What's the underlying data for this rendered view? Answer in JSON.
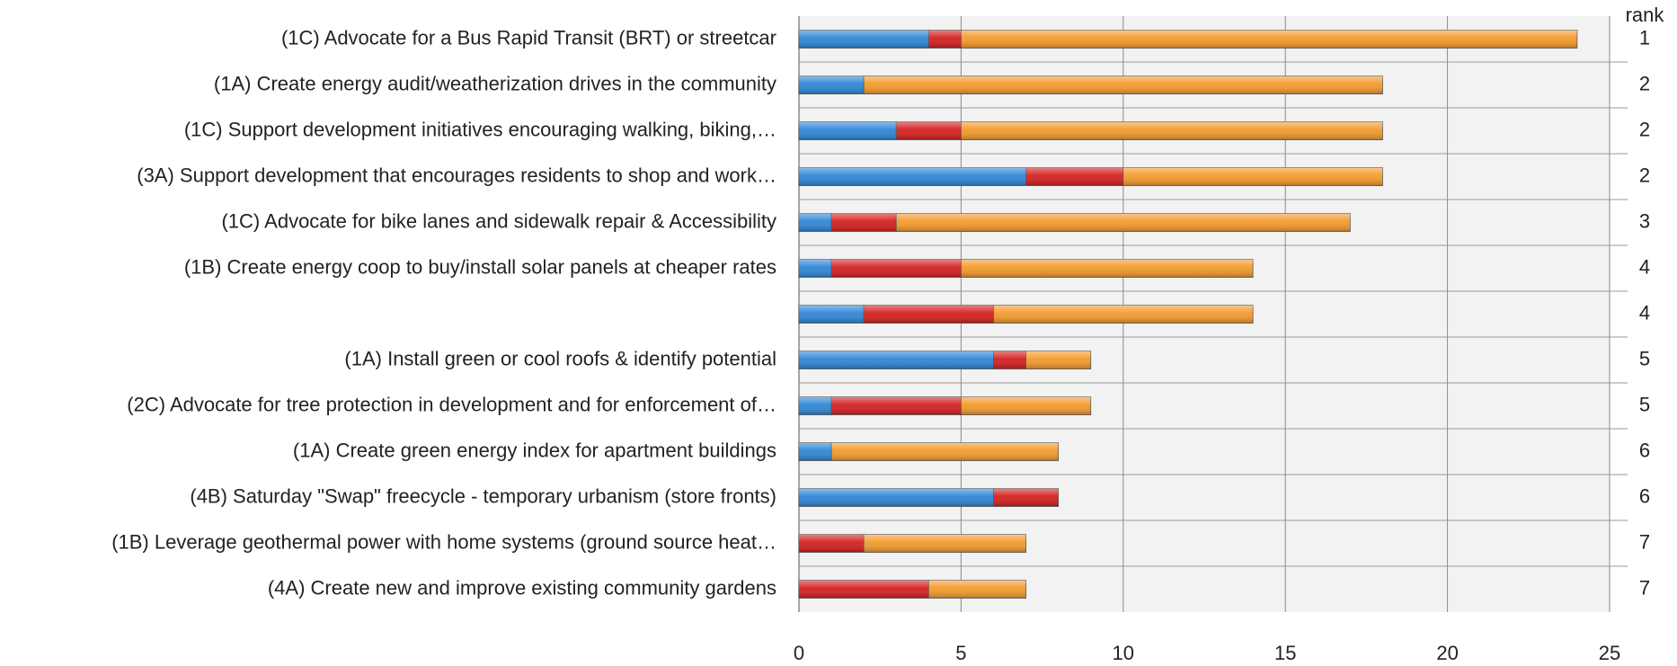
{
  "chart_data": {
    "type": "stacked_bar_horizontal",
    "categories": [
      "(1C) Advocate for a Bus Rapid Transit (BRT) or streetcar",
      "(1A) Create energy audit/weatherization drives in the community",
      "(1C) Support development initiatives encouraging walking, biking,…",
      "(3A) Support development that encourages residents to shop and work…",
      "(1C) Advocate for bike lanes and sidewalk repair & Accessibility",
      "(1B) Create energy coop to buy/install solar panels at cheaper rates",
      null,
      "(1A) Install green or cool roofs & identify potential",
      "(2C) Advocate for tree protection in development and for enforcement of…",
      "(1A) Create green energy index for apartment buildings",
      "(4B) Saturday \"Swap\" freecycle - temporary urbanism (store fronts)",
      "(1B) Leverage geothermal power with home systems (ground source heat…",
      "(4A) Create new and improve existing community gardens"
    ],
    "series": [
      {
        "color": "#2e86d6",
        "values": [
          4,
          2,
          3,
          7,
          1,
          1,
          2,
          6,
          1,
          1,
          6,
          0,
          0
        ]
      },
      {
        "color": "#d41f1f",
        "values": [
          1,
          0,
          2,
          3,
          2,
          4,
          4,
          1,
          4,
          0,
          2,
          2,
          4
        ]
      },
      {
        "color": "#f39a2b",
        "values": [
          19,
          16,
          13,
          8,
          14,
          9,
          8,
          2,
          4,
          7,
          0,
          5,
          3
        ]
      }
    ],
    "rank_header": "rank",
    "ranks": [
      1,
      2,
      2,
      2,
      3,
      4,
      4,
      5,
      5,
      6,
      6,
      7,
      7
    ],
    "xlim": [
      0,
      25
    ],
    "xticks": [
      0,
      5,
      10,
      15,
      20,
      25
    ],
    "grid": true
  }
}
